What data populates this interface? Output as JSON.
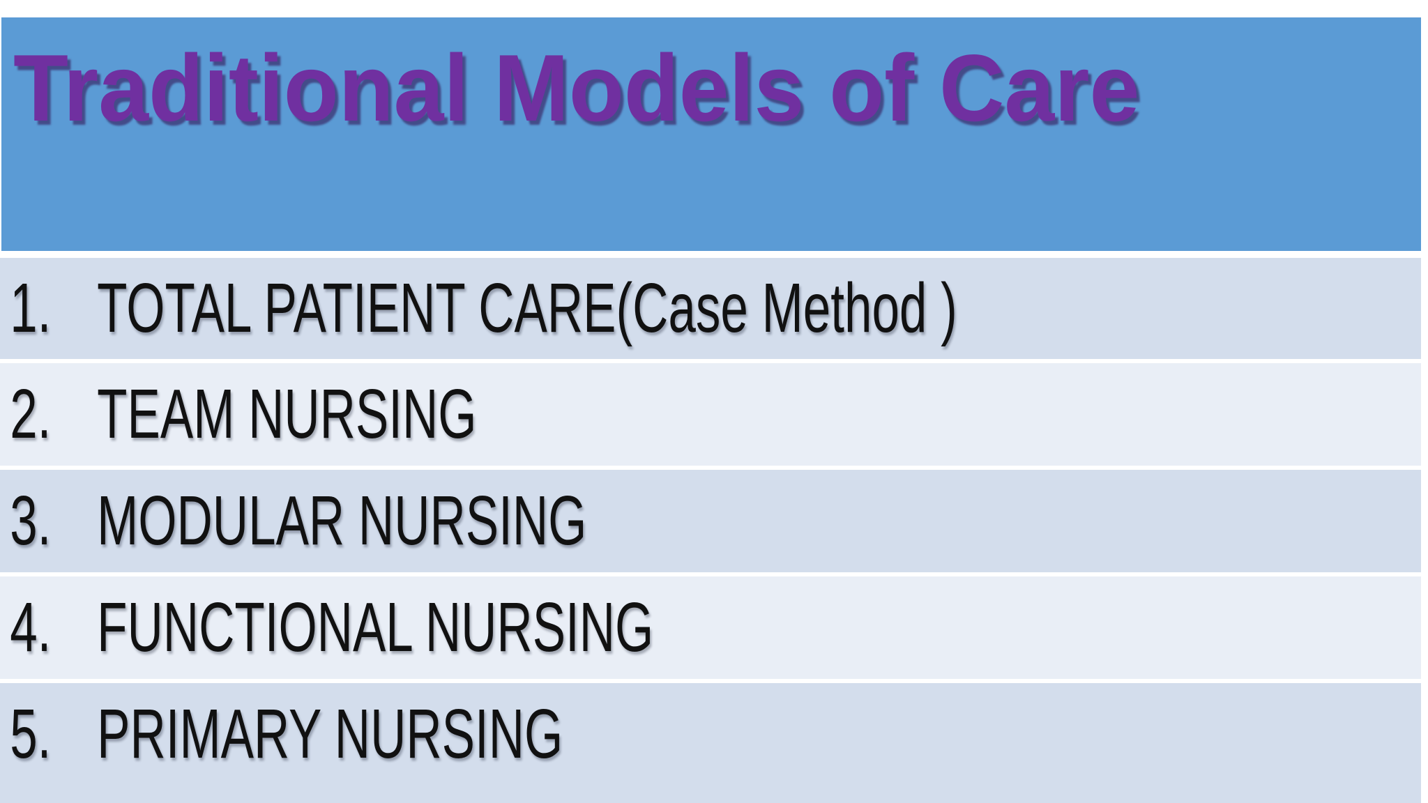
{
  "slide": {
    "title": "Traditional Models of Care",
    "items": [
      {
        "number": "1.",
        "label": "TOTAL PATIENT CARE(Case Method )"
      },
      {
        "number": "2.",
        "label": "TEAM NURSING"
      },
      {
        "number": "3.",
        "label": "MODULAR NURSING"
      },
      {
        "number": "4.",
        "label": "FUNCTIONAL NURSING"
      },
      {
        "number": "5.",
        "label": "PRIMARY NURSING"
      }
    ],
    "colors": {
      "background": "#ffffff",
      "header_bg": "#5b9bd5",
      "title_color": "#7030a0",
      "row_alt_dark": "#d3ddec",
      "row_alt_light": "#e9eef6",
      "text_color": "#111111"
    }
  }
}
